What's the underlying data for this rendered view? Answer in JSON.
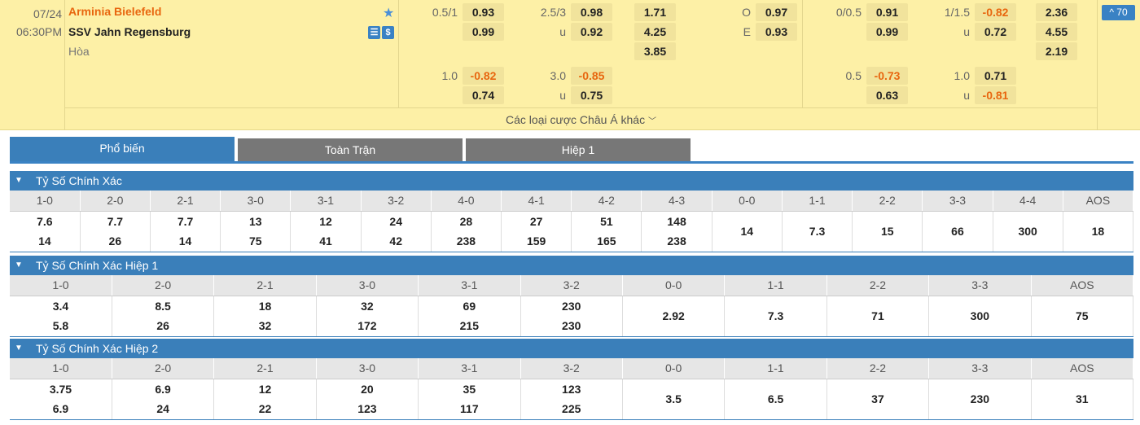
{
  "match": {
    "date": "07/24",
    "time": "06:30PM",
    "home": "Arminia Bielefeld",
    "away": "SSV Jahn Regensburg",
    "draw": "Hòa",
    "badge": "^ 70",
    "more_label": "Các loại cược Châu Á khác",
    "more_icon": "chevron-down-icon"
  },
  "odds": [
    {
      "label": "0.5/1",
      "v1": "0.93",
      "v2": "0.99"
    },
    {
      "label": "2.5/3",
      "v1": "0.98",
      "l2": "u",
      "v2": "0.92"
    },
    {
      "x1": [
        "1.71",
        "4.25",
        "3.85"
      ]
    },
    {
      "label": "O",
      "v1": "0.97",
      "l2": "E",
      "v2": "0.93"
    },
    {
      "label": "1.0",
      "v1": "-0.82",
      "v2": "0.74"
    },
    {
      "label": "3.0",
      "v1": "-0.85",
      "l2": "u",
      "v2": "0.75"
    },
    {
      "label": "0/0.5",
      "v1": "0.91",
      "v2": "0.99"
    },
    {
      "label": "1/1.5",
      "v1": "-0.82",
      "l2": "u",
      "v2": "0.72"
    },
    {
      "x1": [
        "2.36",
        "4.55",
        "2.19"
      ]
    },
    {
      "label": "0.5",
      "v1": "-0.73",
      "v2": "0.63"
    },
    {
      "label": "1.0",
      "v1": "0.71",
      "l2": "u",
      "v2": "-0.81"
    }
  ],
  "tabs": [
    "Phổ biến",
    "Toàn Trận",
    "Hiệp 1"
  ],
  "sections": [
    {
      "title": "Tỷ Số Chính Xác",
      "cols": [
        "1-0",
        "2-0",
        "2-1",
        "3-0",
        "3-1",
        "3-2",
        "4-0",
        "4-1",
        "4-2",
        "4-3",
        "0-0",
        "1-1",
        "2-2",
        "3-3",
        "4-4",
        "AOS"
      ],
      "home": [
        "7.6",
        "7.7",
        "7.7",
        "13",
        "12",
        "24",
        "28",
        "27",
        "51",
        "148",
        "14",
        "7.3",
        "15",
        "66",
        "300",
        "18"
      ],
      "away": [
        "14",
        "26",
        "14",
        "75",
        "41",
        "42",
        "238",
        "159",
        "165",
        "238",
        "",
        "",
        "",
        "",
        "",
        ""
      ]
    },
    {
      "title": "Tỷ Số Chính Xác Hiệp 1",
      "cols": [
        "1-0",
        "2-0",
        "2-1",
        "3-0",
        "3-1",
        "3-2",
        "0-0",
        "1-1",
        "2-2",
        "3-3",
        "AOS"
      ],
      "home": [
        "3.4",
        "8.5",
        "18",
        "32",
        "69",
        "230",
        "2.92",
        "7.3",
        "71",
        "300",
        "75"
      ],
      "away": [
        "5.8",
        "26",
        "32",
        "172",
        "215",
        "230",
        "",
        "",
        "",
        "",
        ""
      ]
    },
    {
      "title": "Tỷ Số Chính Xác Hiệp 2",
      "cols": [
        "1-0",
        "2-0",
        "2-1",
        "3-0",
        "3-1",
        "3-2",
        "0-0",
        "1-1",
        "2-2",
        "3-3",
        "AOS"
      ],
      "home": [
        "3.75",
        "6.9",
        "12",
        "20",
        "35",
        "123",
        "3.5",
        "6.5",
        "37",
        "230",
        "31"
      ],
      "away": [
        "6.9",
        "24",
        "22",
        "123",
        "117",
        "225",
        "",
        "",
        "",
        "",
        ""
      ]
    }
  ]
}
